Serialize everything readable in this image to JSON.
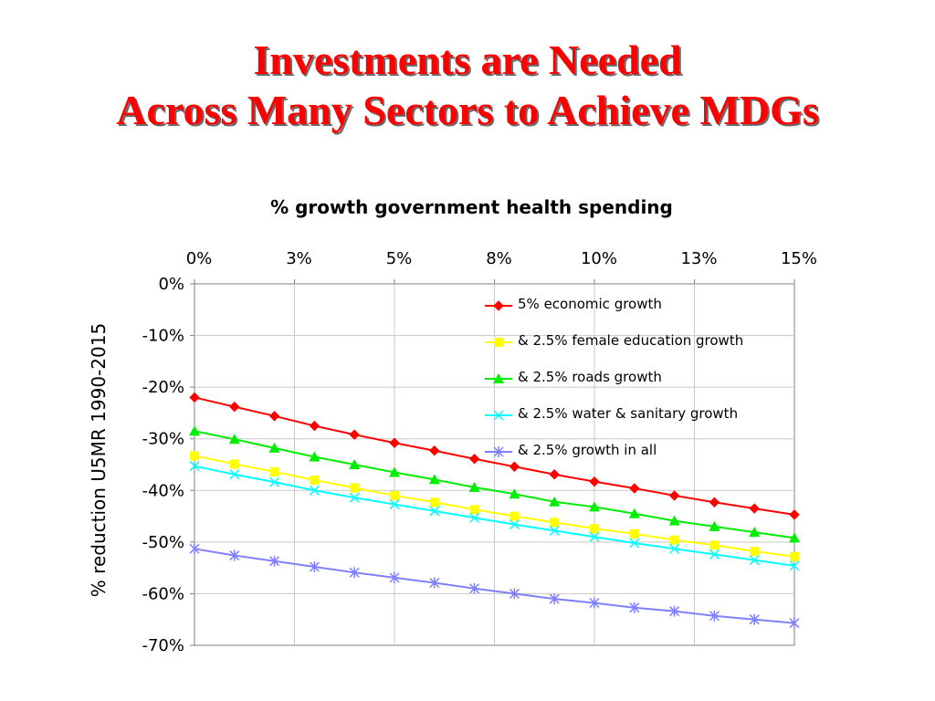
{
  "slide": {
    "title_line1": "Investments are Needed",
    "title_line2": "Across Many Sectors to Achieve MDGs"
  },
  "chart_data": {
    "type": "line",
    "title": "",
    "xlabel": "% growth government health spending",
    "ylabel": "% reduction U5MR 1990-2015",
    "x_tick_labels": [
      "0%",
      "3%",
      "5%",
      "8%",
      "10%",
      "13%",
      "15%"
    ],
    "y_tick_labels": [
      "0%",
      "-10%",
      "-20%",
      "-30%",
      "-40%",
      "-50%",
      "-60%",
      "-70%"
    ],
    "xlim": [
      0,
      15
    ],
    "ylim": [
      -70,
      0
    ],
    "x_axis_position": "top",
    "grid": "vertical and horizontal major gridlines",
    "legend_position": "top-right inside plot",
    "x": [
      0,
      1,
      2,
      3,
      4,
      5,
      6,
      7,
      8,
      9,
      10,
      11,
      12,
      13,
      14,
      15
    ],
    "series": [
      {
        "name": "5% economic growth",
        "color": "#ff0000",
        "marker": "diamond",
        "values": [
          -22.0,
          -23.8,
          -25.6,
          -27.5,
          -29.2,
          -30.8,
          -32.3,
          -33.9,
          -35.4,
          -36.9,
          -38.3,
          -39.6,
          -41.0,
          -42.3,
          -43.5,
          -44.7
        ]
      },
      {
        "name": "& 2.5% female education growth",
        "color": "#ffff00",
        "marker": "square",
        "values": [
          -33.3,
          -34.9,
          -36.4,
          -38.0,
          -39.5,
          -41.0,
          -42.3,
          -43.7,
          -45.0,
          -46.2,
          -47.4,
          -48.4,
          -49.6,
          -50.6,
          -51.8,
          -52.8
        ]
      },
      {
        "name": "& 2.5% roads growth",
        "color": "#00ee00",
        "marker": "triangle",
        "values": [
          -28.5,
          -30.1,
          -31.8,
          -33.5,
          -35.0,
          -36.5,
          -37.9,
          -39.4,
          -40.7,
          -42.2,
          -43.2,
          -44.5,
          -45.9,
          -47.0,
          -48.1,
          -49.2
        ]
      },
      {
        "name": "& 2.5% water & sanitary growth",
        "color": "#00ffff",
        "marker": "x",
        "values": [
          -35.3,
          -36.9,
          -38.4,
          -40.0,
          -41.4,
          -42.7,
          -44.0,
          -45.3,
          -46.6,
          -47.8,
          -49.0,
          -50.2,
          -51.3,
          -52.4,
          -53.5,
          -54.6
        ]
      },
      {
        "name": "& 2.5% growth in all",
        "color": "#8080ff",
        "marker": "star",
        "values": [
          -51.3,
          -52.6,
          -53.7,
          -54.8,
          -55.9,
          -56.9,
          -57.9,
          -59.0,
          -60.0,
          -61.0,
          -61.8,
          -62.7,
          -63.4,
          -64.3,
          -65.0,
          -65.7
        ]
      }
    ]
  }
}
